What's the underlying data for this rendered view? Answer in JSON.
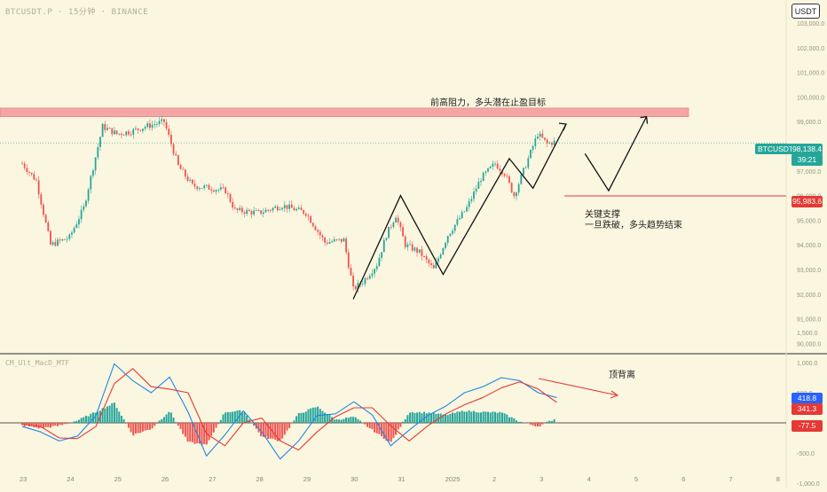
{
  "header": {
    "symbol_line": "BTCUSDT.P · 15分钟 · BINANCE",
    "currency_button": "USDT"
  },
  "annotations": {
    "resistance": "前高阻力，多头潜在止盈目标",
    "support_1": "关键支撑",
    "support_2": "一旦跌破，多头趋势结束",
    "divergence": "顶背离"
  },
  "price_tags": {
    "symbol": "BTCUSDT.P",
    "last_price": "98,138.4",
    "countdown": "39:21",
    "support_price": "95,983.6"
  },
  "indicator": {
    "name": "CM_Ult_MacD_MTF",
    "value_1": "418.8",
    "value_2": "341.3",
    "value_3": "-77.5"
  },
  "colors": {
    "background": "#fbf6e0",
    "up": "#26a69a",
    "down": "#ef5350",
    "resistance_zone": "#f4a6a6",
    "support_line": "#e53935",
    "macd_fast": "#1e88e5",
    "macd_slow": "#e53935",
    "last_price_tag": "#26a69a"
  },
  "chart_data": [
    {
      "type": "candlestick",
      "symbol": "BTCUSDT.P",
      "timeframe": "15分钟",
      "exchange": "BINANCE",
      "x_ticks": [
        "23",
        "24",
        "25",
        "26",
        "27",
        "28",
        "29",
        "30",
        "31",
        "2025",
        "2",
        "3",
        "4",
        "5",
        "6",
        "7",
        "8"
      ],
      "y_ticks": [
        "90,000.0",
        "91,000.0",
        "92,000.0",
        "93,000.0",
        "94,000.0",
        "95,000.0",
        "96,000.0",
        "97,000.0",
        "98,000.0",
        "99,000.0",
        "100,000.0",
        "101,000.0",
        "102,000.0",
        "103,000.0"
      ],
      "ylim": [
        90000,
        103700
      ],
      "last_price": 98138.4,
      "resistance_zone": [
        99200,
        99550
      ],
      "support_level": 95983.6,
      "approx_path": [
        [
          0,
          97300
        ],
        [
          0.3,
          96600
        ],
        [
          0.6,
          94000
        ],
        [
          1.0,
          94300
        ],
        [
          1.3,
          95500
        ],
        [
          1.7,
          98800
        ],
        [
          2.0,
          98500
        ],
        [
          2.3,
          98600
        ],
        [
          2.6,
          98800
        ],
        [
          3.0,
          99000
        ],
        [
          3.3,
          97200
        ],
        [
          3.6,
          96400
        ],
        [
          4.0,
          96300
        ],
        [
          4.3,
          96200
        ],
        [
          4.5,
          95400
        ],
        [
          5.0,
          95300
        ],
        [
          5.5,
          95600
        ],
        [
          6.0,
          95300
        ],
        [
          6.4,
          94100
        ],
        [
          6.8,
          94200
        ],
        [
          7.0,
          92200
        ],
        [
          7.2,
          92500
        ],
        [
          7.5,
          93200
        ],
        [
          7.7,
          94400
        ],
        [
          7.9,
          95200
        ],
        [
          8.1,
          94000
        ],
        [
          8.4,
          93700
        ],
        [
          8.7,
          93000
        ],
        [
          9.0,
          94400
        ],
        [
          9.4,
          95500
        ],
        [
          9.7,
          96700
        ],
        [
          10.0,
          97300
        ],
        [
          10.2,
          96900
        ],
        [
          10.4,
          96000
        ],
        [
          10.7,
          97500
        ],
        [
          10.9,
          98500
        ],
        [
          11.1,
          98100
        ],
        [
          11.3,
          98200
        ]
      ],
      "drawn_zigzag": [
        [
          7.0,
          91800
        ],
        [
          8.0,
          96000
        ],
        [
          8.9,
          92800
        ],
        [
          10.3,
          97500
        ],
        [
          10.8,
          96300
        ],
        [
          11.5,
          98900
        ]
      ],
      "projected_path": [
        [
          11.9,
          97700
        ],
        [
          12.4,
          96200
        ],
        [
          13.2,
          99200
        ]
      ]
    },
    {
      "type": "line",
      "title": "CM_Ult_MacD_MTF",
      "y_ticks": [
        "1,500.0",
        "1,000.0",
        "500.0",
        "0",
        "-500.0",
        "-1,000.0"
      ],
      "ylim": [
        -1100,
        1600
      ],
      "series": [
        {
          "values": [
            -60,
            -150,
            -300,
            -220,
            120,
            980,
            700,
            500,
            760,
            180,
            -550,
            -200,
            200,
            -150,
            -600,
            -300,
            120,
            150,
            350,
            130,
            -380,
            -120,
            120,
            280,
            500,
            600,
            750,
            700,
            500,
            420
          ]
        },
        {
          "values": [
            -20,
            -60,
            -250,
            -260,
            -60,
            650,
            900,
            600,
            560,
            500,
            -180,
            -380,
            0,
            80,
            -300,
            -450,
            -150,
            100,
            250,
            250,
            -50,
            -300,
            -50,
            150,
            300,
            420,
            580,
            680,
            560,
            340
          ]
        }
      ],
      "histogram": [
        -40,
        -90,
        -50,
        40,
        180,
        330,
        -200,
        -100,
        200,
        -320,
        -370,
        180,
        200,
        -230,
        -300,
        150,
        270,
        50,
        100,
        -120,
        -330,
        180,
        170,
        130,
        200,
        180,
        170,
        20,
        -60,
        80
      ]
    }
  ]
}
